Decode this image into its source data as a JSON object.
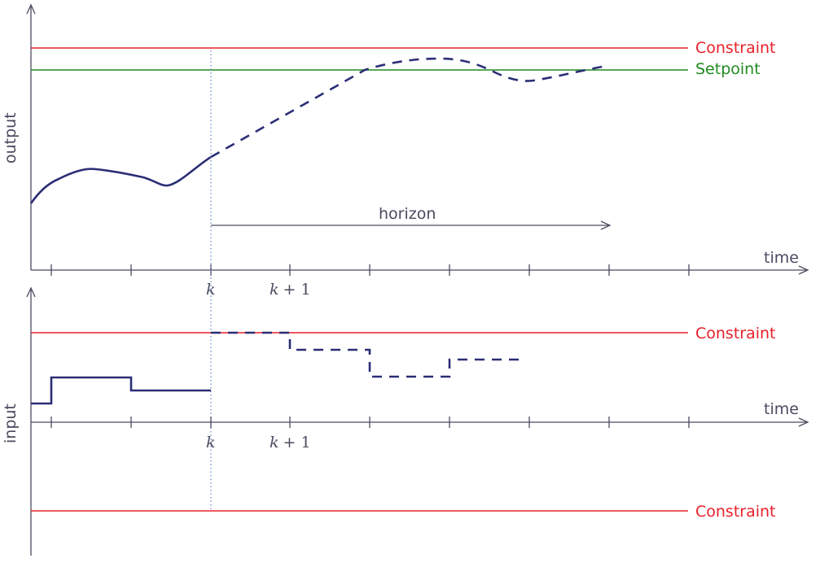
{
  "colors": {
    "constraint": "#e8202a",
    "setpoint": "#1f8a1f",
    "axis": "#4b4b60",
    "trajectory": "#2b2e75",
    "marker": "#5b86c4"
  },
  "output_plot": {
    "ylabel": "output",
    "xlabel": "time",
    "constraint_label": "Constraint",
    "setpoint_label": "Setpoint",
    "horizon_label": "horizon",
    "tick_k": "k",
    "tick_k1_var": "k",
    "tick_k1_rest": "+ 1"
  },
  "input_plot": {
    "ylabel": "input",
    "xlabel": "time",
    "upper_constraint_label": "Constraint",
    "lower_constraint_label": "Constraint",
    "tick_k": "k",
    "tick_k1_var": "k",
    "tick_k1_rest": "+ 1"
  }
}
